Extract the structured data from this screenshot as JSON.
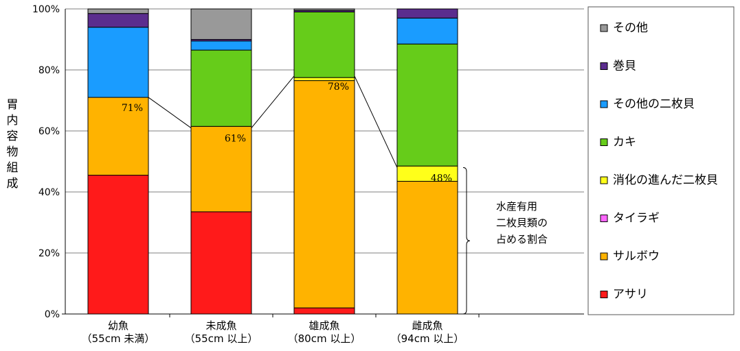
{
  "chart_data": {
    "type": "bar",
    "stacked": true,
    "percent_stacked": true,
    "ylabel": "胃内容物組成",
    "ylim": [
      0,
      100
    ],
    "yticks": [
      "0%",
      "20%",
      "40%",
      "60%",
      "80%",
      "100%"
    ],
    "grid": true,
    "legend_position": "right",
    "categories": [
      [
        "幼魚",
        "（55cm 未満）"
      ],
      [
        "未成魚",
        "（55cm 以上）"
      ],
      [
        "雄成魚",
        "（80cm 以上）"
      ],
      [
        "雌成魚",
        "（94cm 以上）"
      ]
    ],
    "series": [
      {
        "name": "アサリ",
        "color": "#ff1a1a",
        "values": [
          45.5,
          33.5,
          2.0,
          0.0
        ]
      },
      {
        "name": "サルボウ",
        "color": "#ffb300",
        "values": [
          25.5,
          28.0,
          74.5,
          43.5
        ]
      },
      {
        "name": "タイラギ",
        "color": "#ff66ff",
        "values": [
          0.0,
          0.0,
          0.0,
          0.0
        ]
      },
      {
        "name": "消化の進んだ二枚貝",
        "color": "#ffff1a",
        "values": [
          0.0,
          0.0,
          1.0,
          5.0
        ]
      },
      {
        "name": "カキ",
        "color": "#66cc1a",
        "values": [
          0.0,
          25.0,
          21.5,
          40.0
        ]
      },
      {
        "name": "その他の二枚貝",
        "color": "#1a9cff",
        "values": [
          23.0,
          3.0,
          0.0,
          8.5
        ]
      },
      {
        "name": "巻貝",
        "color": "#5b2d8e",
        "values": [
          4.5,
          0.5,
          0.5,
          3.0
        ]
      },
      {
        "name": "その他",
        "color": "#999999",
        "values": [
          1.5,
          10.0,
          0.5,
          0.0
        ]
      }
    ],
    "annotations": [
      {
        "category_index": 0,
        "value": 71,
        "text": "71%"
      },
      {
        "category_index": 1,
        "value": 61,
        "text": "61%"
      },
      {
        "category_index": 2,
        "value": 78,
        "text": "78%"
      },
      {
        "category_index": 3,
        "value": 48,
        "text": "48%"
      }
    ],
    "bracket_note": [
      "水産有用",
      "二枚貝類の",
      "占める割合"
    ],
    "legend_order": [
      "その他",
      "巻貝",
      "その他の二枚貝",
      "カキ",
      "消化の進んだ二枚貝",
      "タイラギ",
      "サルボウ",
      "アサリ"
    ]
  }
}
